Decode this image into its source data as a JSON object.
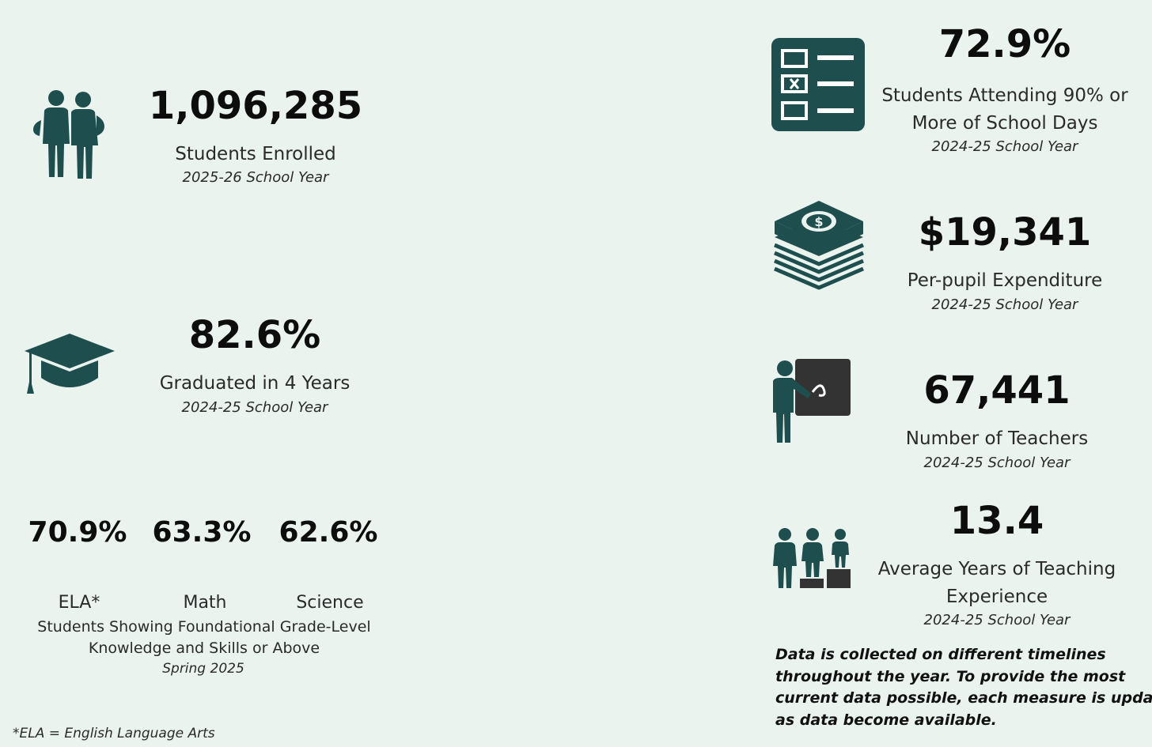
{
  "colors": {
    "background": "#eaf3ee",
    "icon": "#1f4e4e",
    "icon_dark": "#333333"
  },
  "enrollment": {
    "value": "1,096,285",
    "label": "Students Enrolled",
    "period": "2025-26 School Year",
    "icon": "students-icon"
  },
  "graduation": {
    "value": "82.6%",
    "label": "Graduated in 4 Years",
    "period": "2024-25 School Year",
    "icon": "graduation-cap-icon"
  },
  "proficiency": {
    "subjects": [
      {
        "value": "70.9%",
        "label": "ELA*"
      },
      {
        "value": "63.3%",
        "label": "Math"
      },
      {
        "value": "62.6%",
        "label": "Science"
      }
    ],
    "label_lines": [
      "Students Showing Foundational Grade-Level",
      "Knowledge and Skills or Above"
    ],
    "period": "Spring 2025"
  },
  "footnote": "*ELA = English Language Arts",
  "attendance": {
    "value": "72.9%",
    "label_lines": [
      "Students Attending 90% or",
      "More of School Days"
    ],
    "period": "2024-25 School Year",
    "icon": "checklist-icon"
  },
  "expenditure": {
    "value": "$19,341",
    "label": "Per-pupil Expenditure",
    "period": "2024-25 School Year",
    "icon": "money-stack-icon"
  },
  "teachers": {
    "value": "67,441",
    "label": "Number of Teachers",
    "period": "2024-25 School Year",
    "icon": "teacher-icon"
  },
  "experience": {
    "value": "13.4",
    "label_lines": [
      "Average Years of Teaching",
      "Experience"
    ],
    "period": "2024-25 School Year",
    "icon": "podium-people-icon"
  },
  "note_lines": [
    "Data is collected on different timelines",
    "throughout the year. To provide the most",
    "current data possible, each measure is updated",
    "as data become available."
  ]
}
